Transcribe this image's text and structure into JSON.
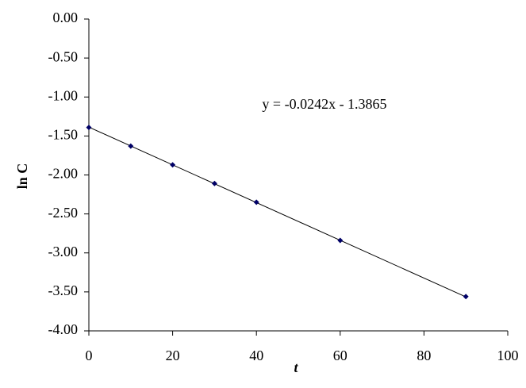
{
  "chart_data": {
    "type": "scatter",
    "x_label": "t",
    "y_label": "ln C",
    "annotation": "y = -0.0242x - 1.3865",
    "series": [
      {
        "color": "#000066",
        "x": [
          0,
          10,
          20,
          30,
          40,
          60,
          90
        ],
        "values": [
          -1.39,
          -1.63,
          -1.87,
          -2.11,
          -2.35,
          -2.84,
          -3.56
        ]
      }
    ],
    "trendline": {
      "slope": -0.0242,
      "intercept": -1.3865,
      "color": "#000000"
    },
    "xlim": [
      0,
      100
    ],
    "xticks": [
      0,
      20,
      40,
      60,
      80,
      100
    ],
    "ylim": [
      -4,
      0
    ],
    "yticks": [
      {
        "value": 0,
        "label": "0.00"
      },
      {
        "value": -0.5,
        "label": "-0.50"
      },
      {
        "value": -1,
        "label": "-1.00"
      },
      {
        "value": -1.5,
        "label": "-1.50"
      },
      {
        "value": -2,
        "label": "-2.00"
      },
      {
        "value": -2.5,
        "label": "-2.50"
      },
      {
        "value": -3,
        "label": "-3.00"
      },
      {
        "value": -3.5,
        "label": "-3.50"
      },
      {
        "value": -4,
        "label": "-4.00"
      }
    ],
    "grid": false
  }
}
